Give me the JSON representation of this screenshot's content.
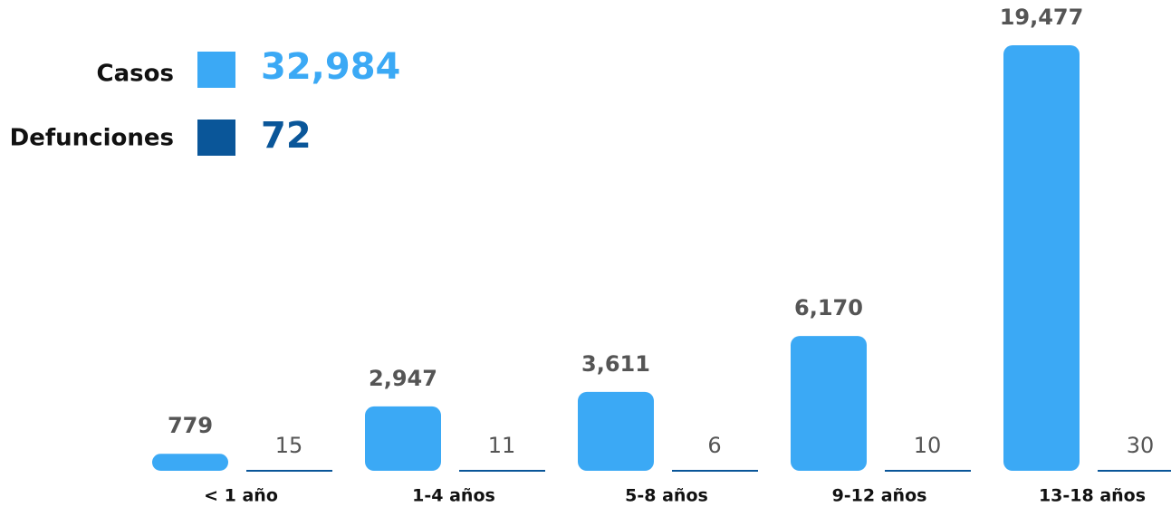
{
  "chart_data": {
    "type": "bar",
    "categories": [
      "< 1 año",
      "1-4 años",
      "5-8 años",
      "9-12 años",
      "13-18 años"
    ],
    "series": [
      {
        "name": "Casos",
        "color": "#3ba9f5",
        "total": "32,984",
        "values": [
          779,
          2947,
          3611,
          6170,
          19477
        ],
        "value_labels": [
          "779",
          "2,947",
          "3,611",
          "6,170",
          "19,477"
        ]
      },
      {
        "name": "Defunciones",
        "color": "#0a5699",
        "total": "72",
        "values": [
          15,
          11,
          6,
          10,
          30
        ]
      }
    ]
  }
}
